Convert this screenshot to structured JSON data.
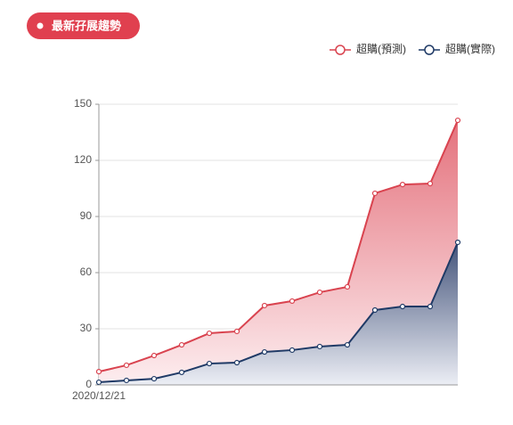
{
  "badge": "最新孖展趨勢",
  "chart_data": {
    "type": "area",
    "categories": [
      "2020/12/21",
      null,
      null,
      null,
      null,
      null,
      null,
      null,
      null,
      null,
      null,
      null,
      null,
      null
    ],
    "series": [
      {
        "name": "超購(預測)",
        "color": "#d9434f",
        "values": [
          7.1,
          10.5,
          15.7,
          21.4,
          27.6,
          28.6,
          42.4,
          44.8,
          49.5,
          52.4,
          102.4,
          107.1,
          107.6,
          141.4
        ]
      },
      {
        "name": "超購(實際)",
        "color": "#1f3a66",
        "values": [
          1.4,
          2.4,
          3.3,
          6.7,
          11.4,
          11.9,
          17.6,
          18.6,
          20.5,
          21.4,
          40,
          41.9,
          41.9,
          76.2
        ]
      }
    ],
    "ylim": [
      0,
      150
    ],
    "yticks": [
      0,
      30,
      60,
      90,
      120,
      150
    ],
    "grid": true,
    "legend": "top-right"
  }
}
